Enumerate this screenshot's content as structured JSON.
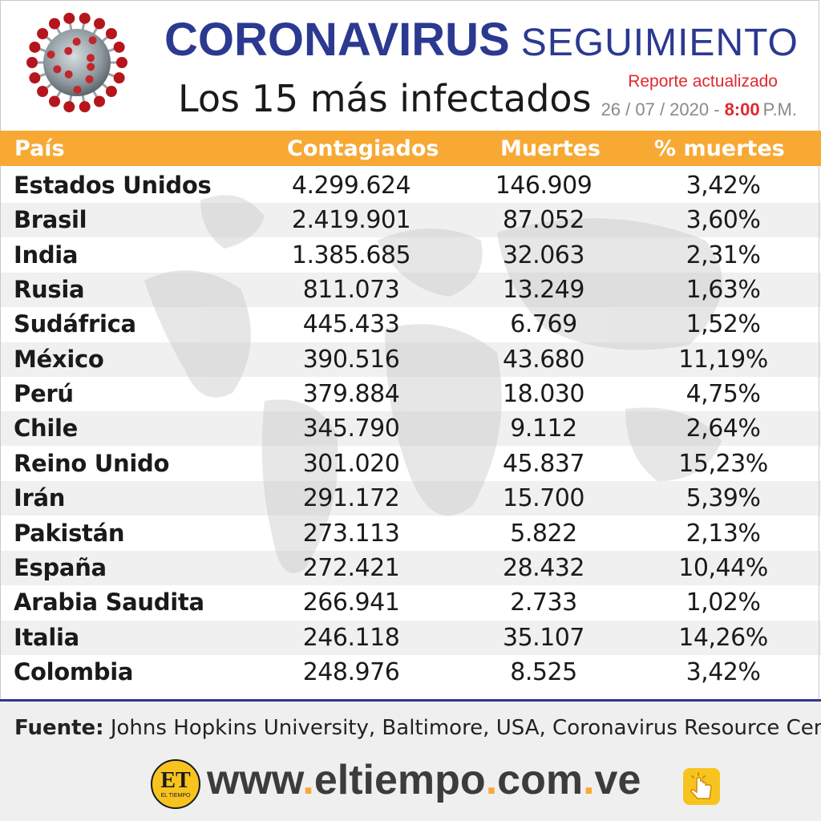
{
  "header": {
    "title_main": "CORONAVIRUS",
    "title_second": "SEGUIMIENTO",
    "subtitle": "Los 15 más infectados",
    "report_label": "Reporte actualizado",
    "date": "26 / 07 / 2020 -",
    "time": "8:00",
    "ampm": "P.M."
  },
  "chart_data": {
    "type": "table",
    "columns": [
      "País",
      "Contagiados",
      "Muertes",
      "% muertes"
    ],
    "rows": [
      [
        "Estados Unidos",
        "4.299.624",
        "146.909",
        "3,42%"
      ],
      [
        "Brasil",
        "2.419.901",
        "87.052",
        "3,60%"
      ],
      [
        "India",
        "1.385.685",
        "32.063",
        "2,31%"
      ],
      [
        "Rusia",
        "811.073",
        "13.249",
        "1,63%"
      ],
      [
        "Sudáfrica",
        "445.433",
        "6.769",
        "1,52%"
      ],
      [
        "México",
        "390.516",
        "43.680",
        "11,19%"
      ],
      [
        "Perú",
        "379.884",
        "18.030",
        "4,75%"
      ],
      [
        "Chile",
        "345.790",
        "9.112",
        "2,64%"
      ],
      [
        "Reino Unido",
        "301.020",
        "45.837",
        "15,23%"
      ],
      [
        "Irán",
        "291.172",
        "15.700",
        "5,39%"
      ],
      [
        "Pakistán",
        "273.113",
        "5.822",
        "2,13%"
      ],
      [
        "España",
        "272.421",
        "28.432",
        "10,44%"
      ],
      [
        "Arabia Saudita",
        "266.941",
        "2.733",
        "1,02%"
      ],
      [
        "Italia",
        "246.118",
        "35.107",
        "14,26%"
      ],
      [
        "Colombia",
        "248.976",
        "8.525",
        "3,42%"
      ]
    ]
  },
  "footer": {
    "source_label": "Fuente:",
    "source_text": "Johns Hopkins University, Baltimore, USA, Coronavirus Resource Center",
    "logo_text": "ET",
    "logo_sub": "EL TIEMPO",
    "url_parts": [
      "www",
      ".",
      "eltiempo",
      ".",
      "com",
      ".",
      "ve"
    ]
  },
  "icons": {
    "virus": "coronavirus-icon",
    "click": "pointer-click-icon"
  },
  "colors": {
    "title_blue": "#2b3990",
    "header_orange": "#f7a934",
    "accent_red": "#e0282e",
    "logo_yellow": "#f7c41f"
  }
}
